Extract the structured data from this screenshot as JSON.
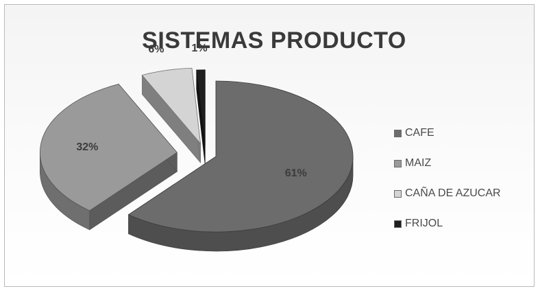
{
  "chart_data": {
    "type": "pie",
    "title": "SISTEMAS PRODUCTO",
    "categories": [
      "CAFE",
      "MAIZ",
      "CAÑA DE AZUCAR",
      "FRIJOL"
    ],
    "values": [
      61,
      32,
      6,
      1
    ],
    "data_labels": [
      "61%",
      "32%",
      "6%",
      "1%"
    ],
    "colors": [
      "#6c6c6c",
      "#9a9a9a",
      "#d4d4d4",
      "#1f1f1f"
    ],
    "style": "3d-exploded",
    "legend_position": "right"
  }
}
